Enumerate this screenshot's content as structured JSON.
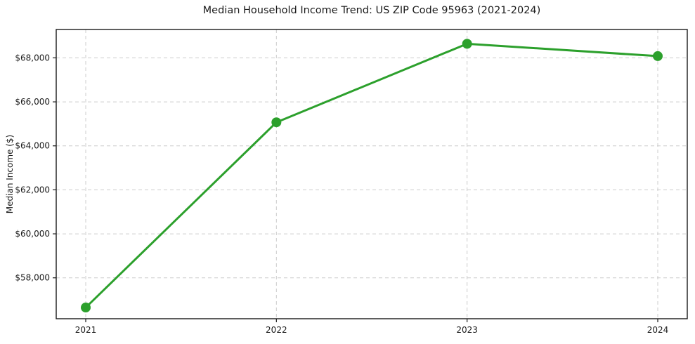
{
  "chart_data": {
    "type": "line",
    "title": "Median Household Income Trend: US ZIP Code 95963 (2021-2024)",
    "xlabel": "",
    "ylabel": "Median Income ($)",
    "x": [
      2021,
      2022,
      2023,
      2024
    ],
    "xtick_labels": [
      "2021",
      "2022",
      "2023",
      "2024"
    ],
    "series": [
      {
        "name": "Median Household Income",
        "values": [
          56650,
          65070,
          68640,
          68080
        ]
      }
    ],
    "yticks": [
      58000,
      60000,
      62000,
      64000,
      66000,
      68000
    ],
    "ytick_labels": [
      "$58,000",
      "$60,000",
      "$62,000",
      "$64,000",
      "$66,000",
      "$68,000"
    ],
    "ylim": [
      56140,
      69290
    ],
    "grid": true,
    "legend_position": "none",
    "colors": {
      "line": "#2ca02c",
      "marker": "#2ca02c",
      "grid": "#cccccc",
      "frame": "#1a1a1a",
      "background": "#ffffff",
      "text": "#1a1a1a"
    }
  }
}
